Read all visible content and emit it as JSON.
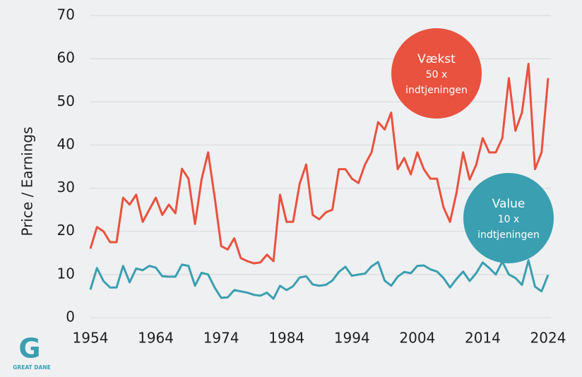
{
  "chart_data": {
    "type": "line",
    "y_label": "Price / Earnings",
    "x": [
      1954,
      1955,
      1956,
      1957,
      1958,
      1959,
      1960,
      1961,
      1962,
      1963,
      1964,
      1965,
      1966,
      1967,
      1968,
      1969,
      1970,
      1971,
      1972,
      1973,
      1974,
      1975,
      1976,
      1977,
      1978,
      1979,
      1980,
      1981,
      1982,
      1983,
      1984,
      1985,
      1986,
      1987,
      1988,
      1989,
      1990,
      1991,
      1992,
      1993,
      1994,
      1995,
      1996,
      1997,
      1998,
      1999,
      2000,
      2001,
      2002,
      2003,
      2004,
      2005,
      2006,
      2007,
      2008,
      2009,
      2010,
      2011,
      2012,
      2013,
      2014,
      2015,
      2016,
      2017,
      2018,
      2019,
      2020,
      2021,
      2022,
      2023,
      2024
    ],
    "series": [
      {
        "name": "Vækst",
        "color": "#e8523f",
        "values": [
          16,
          21,
          20,
          17.5,
          17.5,
          27.8,
          26.2,
          28.5,
          22.2,
          25,
          27.8,
          23.8,
          26.2,
          24.2,
          34.5,
          32.2,
          21.7,
          32,
          38.3,
          28,
          16.6,
          15.8,
          18.4,
          13.8,
          13.1,
          12.6,
          12.8,
          14.6,
          13.1,
          28.5,
          22.2,
          22.2,
          31,
          35.5,
          23.8,
          22.8,
          24.4,
          25,
          34.4,
          34.4,
          32.2,
          31.2,
          35.5,
          38.3,
          45.3,
          43.6,
          47.5,
          34.4,
          37,
          33.2,
          38.3,
          34.4,
          32.2,
          32.2,
          25.6,
          22.2,
          29,
          38.3,
          32,
          35.4,
          41.6,
          38.3,
          38.3,
          41.6,
          55.5,
          43.3,
          47.5,
          58.8,
          34.4,
          38.3,
          55.5
        ]
      },
      {
        "name": "Value",
        "color": "#3a9fb0",
        "values": [
          6.5,
          11.5,
          8.5,
          7,
          7,
          12,
          8.2,
          11.4,
          11,
          12,
          11.6,
          9.6,
          9.5,
          9.5,
          12.3,
          12,
          7.4,
          10.4,
          10,
          7,
          4.6,
          4.7,
          6.4,
          6.1,
          5.8,
          5.3,
          5.1,
          5.8,
          4.4,
          7.4,
          6.4,
          7.3,
          9.3,
          9.6,
          7.7,
          7.4,
          7.6,
          8.6,
          10.6,
          11.8,
          9.7,
          10,
          10.2,
          11.9,
          12.9,
          8.6,
          7.4,
          9.5,
          10.6,
          10.3,
          12,
          12.1,
          11.2,
          10.7,
          9.2,
          7,
          9,
          10.7,
          8.5,
          10.3,
          12.8,
          11.5,
          10,
          13,
          10,
          9.2,
          7.6,
          13.3,
          7.2,
          6.1,
          9.9
        ]
      }
    ],
    "annotations": [
      {
        "series": 0,
        "lines": [
          "Vækst",
          "50 x",
          "indtjeningen"
        ]
      },
      {
        "series": 1,
        "lines": [
          "Value",
          "10 x",
          "indtjeningen"
        ]
      }
    ],
    "xlim": [
      1954,
      2024
    ],
    "xticks": [
      1954,
      1964,
      1974,
      1984,
      1994,
      2004,
      2014,
      2024
    ],
    "ylim": [
      0,
      70
    ],
    "yticks": [
      0,
      10,
      20,
      30,
      40,
      50,
      60,
      70
    ],
    "grid": true,
    "logo": {
      "letter": "G",
      "name": "GREAT DANE"
    }
  }
}
